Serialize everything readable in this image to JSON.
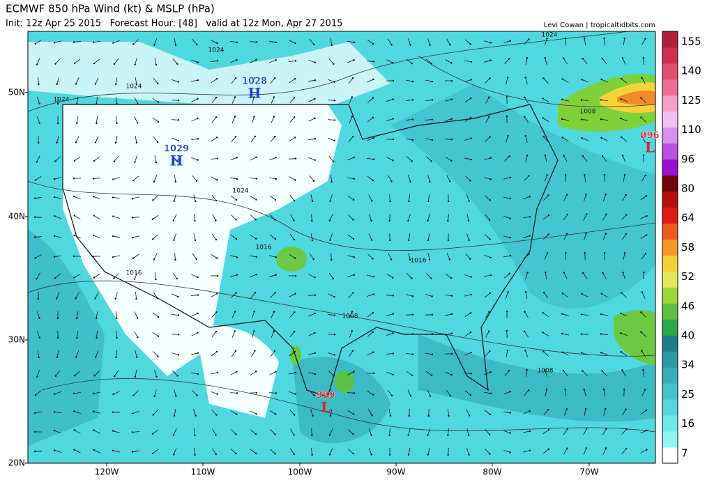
{
  "header": {
    "title": "ECMWF 850 hPa Wind (kt) & MSLP (hPa)",
    "subtitle": "Init: 12z Apr 25 2015   Forecast Hour: [48]   valid at 12z Mon, Apr 27 2015",
    "credit": "Levi Cowan | tropicaltidbits.com"
  },
  "map": {
    "lat_labels": [
      "50N",
      "40N",
      "30N",
      "20N"
    ],
    "lon_labels": [
      "120W",
      "110W",
      "100W",
      "90W",
      "80W",
      "70W"
    ],
    "pressure_centers": [
      {
        "letter": "H",
        "value": "1028"
      },
      {
        "letter": "H",
        "value": "1029"
      },
      {
        "letter": "L",
        "value": "999"
      },
      {
        "letter": "L",
        "value": "996"
      }
    ],
    "isobar_labels": [
      "1024",
      "1024",
      "1024",
      "1024",
      "1024",
      "1016",
      "1016",
      "1016",
      "1008",
      "1008",
      "1008"
    ]
  },
  "colorbar": {
    "labels": [
      "155",
      "140",
      "125",
      "110",
      "96",
      "80",
      "64",
      "58",
      "52",
      "46",
      "40",
      "34",
      "25",
      "16",
      "7"
    ]
  }
}
